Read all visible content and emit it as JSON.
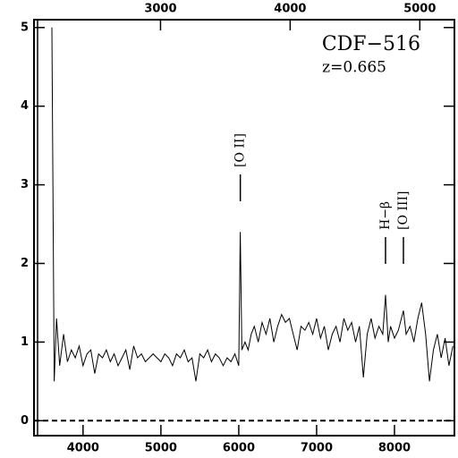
{
  "chart_data": {
    "type": "line",
    "title": "CDF−516",
    "subtitle": "z=0.665",
    "x": [
      3600,
      3630,
      3660,
      3700,
      3750,
      3800,
      3850,
      3900,
      3950,
      4000,
      4050,
      4100,
      4150,
      4200,
      4250,
      4300,
      4350,
      4400,
      4450,
      4500,
      4550,
      4600,
      4650,
      4700,
      4750,
      4800,
      4850,
      4900,
      4950,
      5000,
      5050,
      5100,
      5150,
      5200,
      5250,
      5300,
      5350,
      5400,
      5450,
      5500,
      5550,
      5600,
      5650,
      5700,
      5750,
      5800,
      5850,
      5900,
      5950,
      6000,
      6020,
      6040,
      6080,
      6120,
      6160,
      6200,
      6250,
      6300,
      6350,
      6400,
      6450,
      6500,
      6550,
      6600,
      6650,
      6700,
      6750,
      6800,
      6850,
      6900,
      6950,
      7000,
      7050,
      7100,
      7150,
      7200,
      7250,
      7300,
      7350,
      7400,
      7450,
      7500,
      7550,
      7600,
      7650,
      7700,
      7750,
      7800,
      7850,
      7885,
      7920,
      7950,
      8000,
      8050,
      8115,
      8150,
      8200,
      8250,
      8300,
      8350,
      8400,
      8450,
      8500,
      8550,
      8600,
      8650,
      8700,
      8750
    ],
    "values": [
      5.0,
      0.5,
      1.3,
      0.7,
      1.1,
      0.75,
      0.9,
      0.8,
      0.95,
      0.7,
      0.85,
      0.9,
      0.6,
      0.85,
      0.8,
      0.9,
      0.75,
      0.85,
      0.7,
      0.8,
      0.9,
      0.65,
      0.95,
      0.8,
      0.85,
      0.75,
      0.8,
      0.85,
      0.8,
      0.75,
      0.85,
      0.8,
      0.7,
      0.85,
      0.8,
      0.9,
      0.75,
      0.8,
      0.5,
      0.85,
      0.8,
      0.9,
      0.75,
      0.85,
      0.8,
      0.7,
      0.8,
      0.75,
      0.85,
      0.7,
      2.4,
      0.9,
      1.0,
      0.9,
      1.1,
      1.2,
      1.0,
      1.25,
      1.1,
      1.3,
      1.0,
      1.2,
      1.35,
      1.25,
      1.3,
      1.1,
      0.9,
      1.2,
      1.15,
      1.25,
      1.1,
      1.3,
      1.05,
      1.2,
      0.9,
      1.1,
      1.2,
      1.0,
      1.3,
      1.15,
      1.25,
      1.0,
      1.2,
      0.55,
      1.1,
      1.3,
      1.05,
      1.2,
      1.1,
      1.6,
      1.0,
      1.2,
      1.05,
      1.15,
      1.4,
      1.1,
      1.2,
      1.0,
      1.3,
      1.5,
      1.1,
      0.5,
      0.9,
      1.1,
      0.8,
      1.05,
      0.7,
      0.95
    ],
    "color": "#000000",
    "xlim": [
      3370,
      8770
    ],
    "xticks": [
      4000,
      5000,
      6000,
      7000,
      8000
    ],
    "x2lim": [
      2024,
      5267
    ],
    "x2ticks": [
      3000,
      4000,
      5000
    ],
    "ylim": [
      -0.19,
      5.1
    ],
    "yticks": [
      0,
      1,
      2,
      3,
      4,
      5
    ],
    "zero_line": 0,
    "annotations": [
      {
        "text": "[O II]",
        "x": 6020
      },
      {
        "text": "H−β",
        "x": 7885
      },
      {
        "text": "[O III]",
        "x": 8115
      }
    ]
  }
}
